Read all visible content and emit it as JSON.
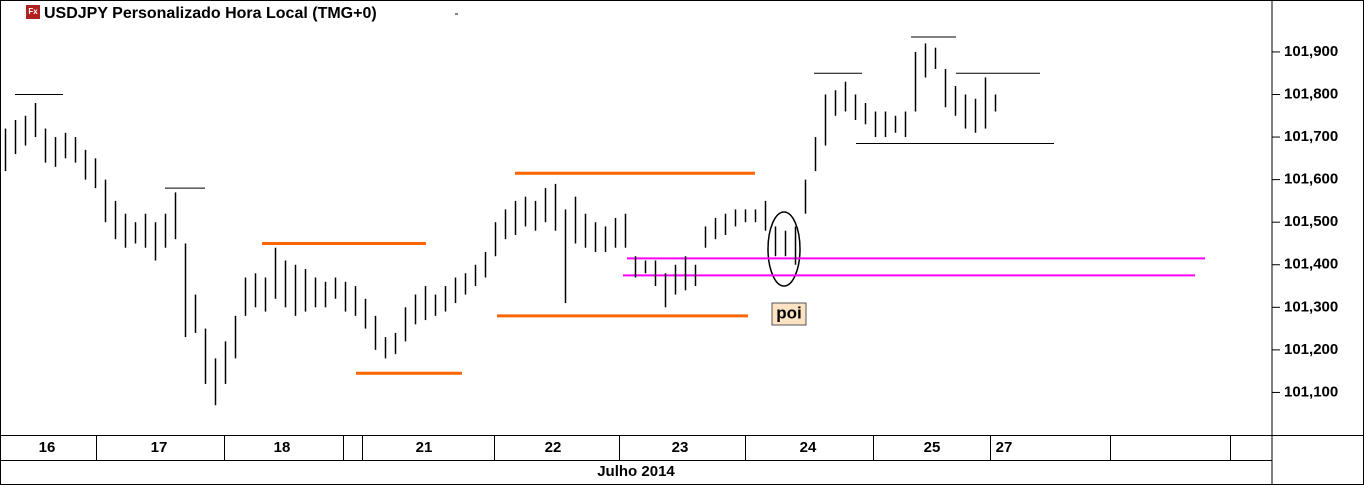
{
  "chart_data": {
    "type": "range-bars",
    "title": "USDJPY Personalizado Hora Local (TMG+0)",
    "icon_label": "Fx",
    "x_label": "Julho 2014",
    "days": [
      "16",
      "17",
      "18",
      "21",
      "22",
      "23",
      "24",
      "25",
      "27"
    ],
    "color": "#000000",
    "high": [
      101.72,
      101.74,
      101.75,
      101.78,
      101.72,
      101.7,
      101.71,
      101.7,
      101.67,
      101.65,
      101.6,
      101.55,
      101.52,
      101.5,
      101.52,
      101.5,
      101.52,
      101.57,
      101.45,
      101.33,
      101.25,
      101.18,
      101.22,
      101.28,
      101.37,
      101.38,
      101.37,
      101.44,
      101.41,
      101.4,
      101.39,
      101.37,
      101.36,
      101.37,
      101.36,
      101.35,
      101.32,
      101.28,
      101.23,
      101.24,
      101.3,
      101.33,
      101.35,
      101.33,
      101.35,
      101.37,
      101.38,
      101.4,
      101.43,
      101.5,
      101.53,
      101.55,
      101.56,
      101.55,
      101.58,
      101.59,
      101.53,
      101.56,
      101.52,
      101.5,
      101.49,
      101.51,
      101.52,
      101.42,
      101.41,
      101.41,
      101.38,
      101.4,
      101.42,
      101.4,
      101.49,
      101.51,
      101.52,
      101.53,
      101.53,
      101.53,
      101.55,
      101.49,
      101.48,
      101.49,
      101.6,
      101.7,
      101.8,
      101.81,
      101.83,
      101.8,
      101.78,
      101.76,
      101.76,
      101.75,
      101.76,
      101.9,
      101.92,
      101.91,
      101.86,
      101.82,
      101.8,
      101.79,
      101.84,
      101.8
    ],
    "low": [
      101.62,
      101.66,
      101.68,
      101.7,
      101.64,
      101.63,
      101.65,
      101.64,
      101.6,
      101.58,
      101.5,
      101.46,
      101.44,
      101.45,
      101.44,
      101.41,
      101.44,
      101.46,
      101.23,
      101.24,
      101.12,
      101.07,
      101.12,
      101.18,
      101.28,
      101.3,
      101.29,
      101.32,
      101.3,
      101.28,
      101.29,
      101.3,
      101.3,
      101.32,
      101.29,
      101.28,
      101.25,
      101.2,
      101.18,
      101.19,
      101.22,
      101.26,
      101.27,
      101.28,
      101.29,
      101.31,
      101.33,
      101.35,
      101.37,
      101.42,
      101.46,
      101.47,
      101.49,
      101.48,
      101.5,
      101.48,
      101.31,
      101.45,
      101.44,
      101.43,
      101.43,
      101.44,
      101.44,
      101.37,
      101.38,
      101.35,
      101.3,
      101.33,
      101.34,
      101.35,
      101.44,
      101.46,
      101.47,
      101.49,
      101.5,
      101.5,
      101.48,
      101.42,
      101.42,
      101.4,
      101.52,
      101.62,
      101.68,
      101.75,
      101.76,
      101.74,
      101.73,
      101.7,
      101.7,
      101.71,
      101.7,
      101.76,
      101.84,
      101.86,
      101.77,
      101.75,
      101.72,
      101.71,
      101.72,
      101.76
    ],
    "levels": [
      {
        "value": 101.8,
        "color": "#000000"
      },
      {
        "value": 101.58,
        "color": "#000000"
      },
      {
        "value": 101.45,
        "color": "#ff6600"
      },
      {
        "value": 101.145,
        "color": "#ff6600"
      },
      {
        "value": 101.615,
        "color": "#ff6600"
      },
      {
        "value": 101.28,
        "color": "#ff6600"
      },
      {
        "value": 101.415,
        "color": "#ff00ff"
      },
      {
        "value": 101.375,
        "color": "#ff00ff"
      },
      {
        "value": 101.85,
        "color": "#000000"
      },
      {
        "value": 101.935,
        "color": "#000000"
      },
      {
        "value": 101.85,
        "color": "#000000"
      },
      {
        "value": 101.685,
        "color": "#000000"
      }
    ],
    "annotation": "poi",
    "ylim": [
      101.0,
      102.022
    ],
    "yticks": [
      {
        "value": 101.1,
        "label": "101,100"
      },
      {
        "value": 101.2,
        "label": "101,200"
      },
      {
        "value": 101.3,
        "label": "101,300"
      },
      {
        "value": 101.4,
        "label": "101,400"
      },
      {
        "value": 101.5,
        "label": "101,500"
      },
      {
        "value": 101.6,
        "label": "101,600"
      },
      {
        "value": 101.7,
        "label": "101,700"
      },
      {
        "value": 101.8,
        "label": "101,800"
      },
      {
        "value": 101.9,
        "label": "101,900"
      }
    ]
  }
}
